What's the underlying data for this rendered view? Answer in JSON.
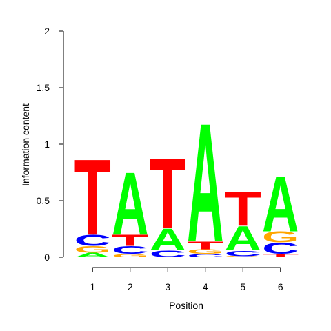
{
  "chart_data": {
    "type": "sequence-logo",
    "xlabel": "Position",
    "ylabel": "Information content",
    "ylim": [
      0,
      2
    ],
    "y_ticks": [
      "0",
      "0.5",
      "1",
      "1.5",
      "2"
    ],
    "positions": [
      "1",
      "2",
      "3",
      "4",
      "5",
      "6"
    ],
    "colors": {
      "A": "#00ff00",
      "C": "#0000ff",
      "G": "#ffa500",
      "T": "#ff0000"
    },
    "stacks": [
      [
        {
          "letter": "A",
          "height": 0.04
        },
        {
          "letter": "G",
          "height": 0.06
        },
        {
          "letter": "C",
          "height": 0.1
        },
        {
          "letter": "T",
          "height": 0.69
        }
      ],
      [
        {
          "letter": "G",
          "height": 0.03
        },
        {
          "letter": "C",
          "height": 0.07
        },
        {
          "letter": "T",
          "height": 0.1
        },
        {
          "letter": "A",
          "height": 0.57
        }
      ],
      [
        {
          "letter": "C",
          "height": 0.06
        },
        {
          "letter": "A",
          "height": 0.2
        },
        {
          "letter": "T",
          "height": 0.64
        }
      ],
      [
        {
          "letter": "C",
          "height": 0.03
        },
        {
          "letter": "G",
          "height": 0.04
        },
        {
          "letter": "T",
          "height": 0.07
        },
        {
          "letter": "A",
          "height": 1.08
        }
      ],
      [
        {
          "letter": "G",
          "height": 0.01
        },
        {
          "letter": "C",
          "height": 0.05
        },
        {
          "letter": "A",
          "height": 0.22
        },
        {
          "letter": "T",
          "height": 0.31
        }
      ],
      [
        {
          "letter": "T",
          "height": 0.03
        },
        {
          "letter": "C",
          "height": 0.1
        },
        {
          "letter": "G",
          "height": 0.1
        },
        {
          "letter": "A",
          "height": 0.5
        }
      ]
    ]
  }
}
